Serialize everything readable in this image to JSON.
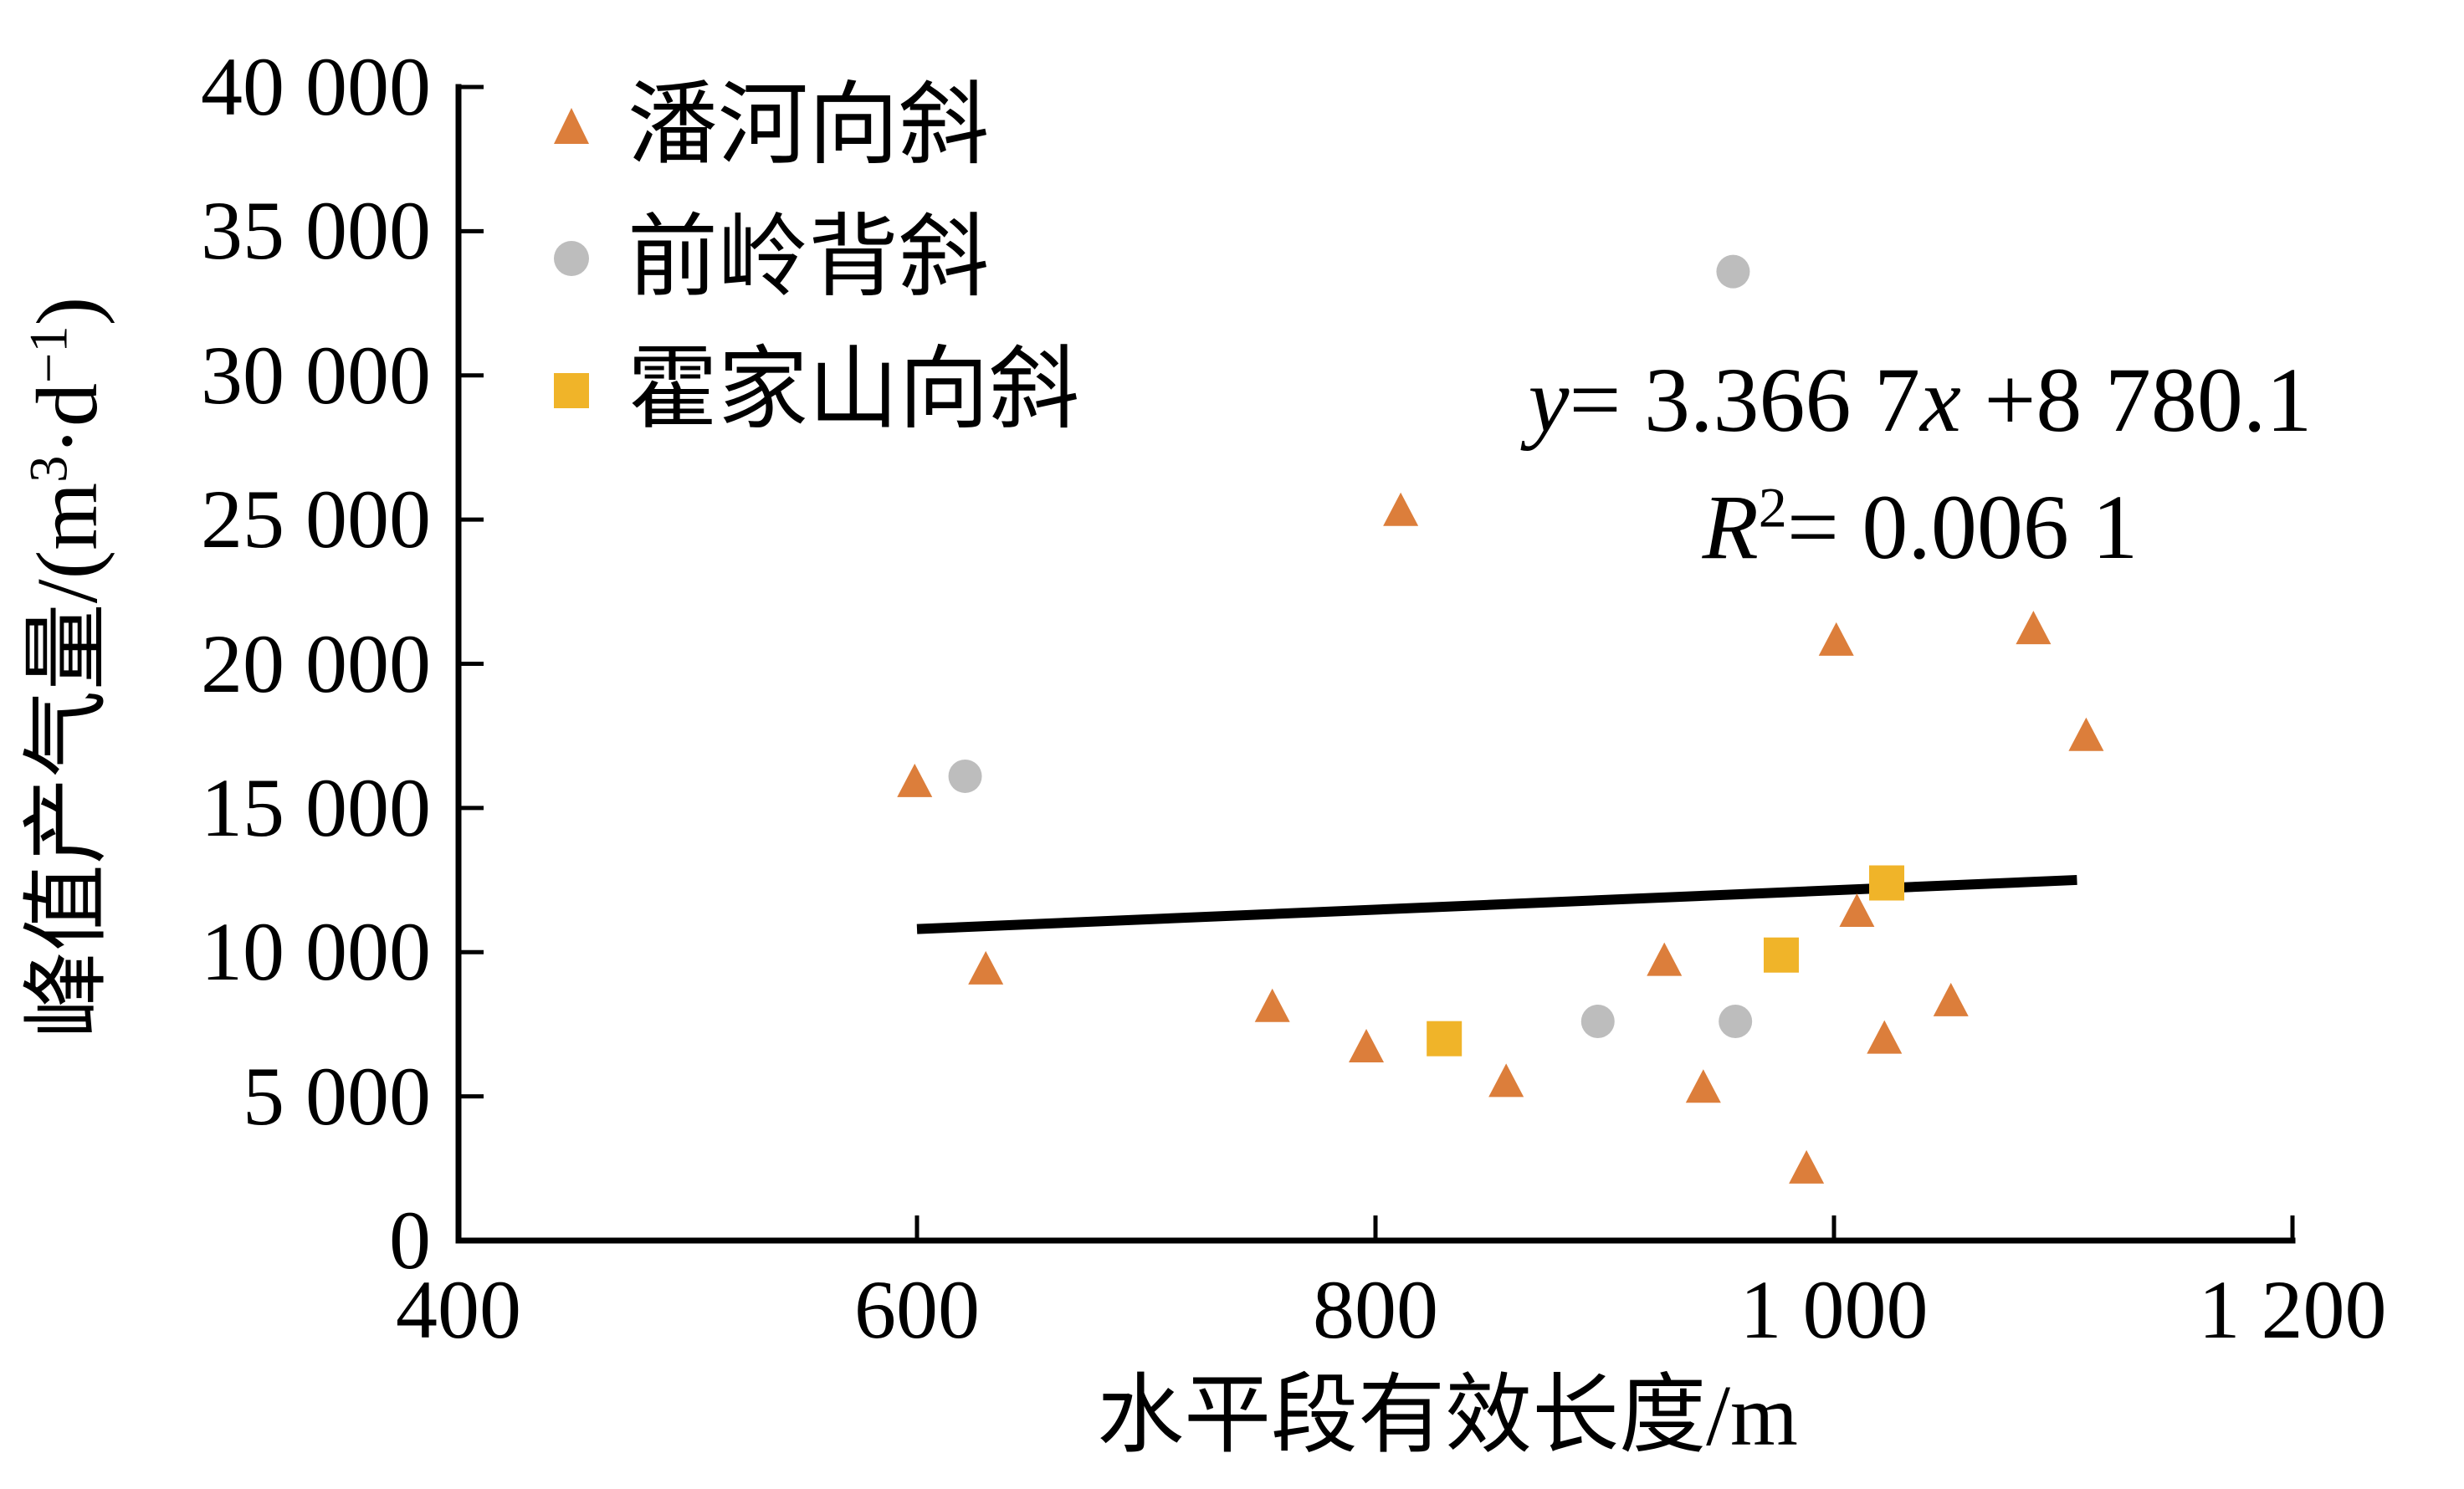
{
  "figure": {
    "background": "#FFFFFF"
  },
  "axes": {
    "x_title": "水平段有效长度/m",
    "y_title_prefix": "峰值产气量/(m",
    "y_title_sup1": "3",
    "y_title_mid": "·d",
    "y_title_sup2": "−1",
    "y_title_suffix": ")"
  },
  "annotation": {
    "line1_var1": "y",
    "line1_mid": "= 3.366 7",
    "line1_var2": "x",
    "line1_tail": " +8 780.1",
    "line2_var": "R",
    "line2_sup": "2",
    "line2_tail": "= 0.006 1"
  },
  "chart_data": {
    "type": "scatter",
    "title": "",
    "xlabel": "水平段有效长度/m",
    "ylabel": "峰值产气量/(m³·d⁻¹)",
    "x_range": [
      400,
      1200
    ],
    "y_range": [
      0,
      40000
    ],
    "grid": false,
    "legend_position": "top-left-inside",
    "x_ticks": [
      {
        "value": 400,
        "label": "400"
      },
      {
        "value": 600,
        "label": "600"
      },
      {
        "value": 800,
        "label": "800"
      },
      {
        "value": 1000,
        "label": "1 000"
      },
      {
        "value": 1200,
        "label": "1 200"
      }
    ],
    "y_ticks": [
      {
        "value": 0,
        "label": "0"
      },
      {
        "value": 5000,
        "label": "5 000"
      },
      {
        "value": 10000,
        "label": "10 000"
      },
      {
        "value": 15000,
        "label": "15 000"
      },
      {
        "value": 20000,
        "label": "20 000"
      },
      {
        "value": 25000,
        "label": "25 000"
      },
      {
        "value": 30000,
        "label": "30 000"
      },
      {
        "value": 35000,
        "label": "35 000"
      },
      {
        "value": 40000,
        "label": "40 000"
      }
    ],
    "series": [
      {
        "name": "潘河向斜",
        "marker": "triangle",
        "color": "#DC7E3B",
        "points": [
          [
            599,
            15900
          ],
          [
            630,
            9400
          ],
          [
            755,
            8100
          ],
          [
            796,
            6700
          ],
          [
            811,
            25300
          ],
          [
            857,
            5500
          ],
          [
            926,
            9700
          ],
          [
            943,
            5300
          ],
          [
            988,
            2500
          ],
          [
            1001,
            20800
          ],
          [
            1010,
            11400
          ],
          [
            1022,
            7000
          ],
          [
            1051,
            8300
          ],
          [
            1087,
            21200
          ],
          [
            1110,
            17500
          ]
        ]
      },
      {
        "name": "前岭背斜",
        "marker": "circle",
        "color": "#BDBDBD",
        "points": [
          [
            621,
            16100
          ],
          [
            897,
            7600
          ],
          [
            956,
            33600
          ],
          [
            957,
            7600
          ]
        ]
      },
      {
        "name": "霍家山向斜",
        "marker": "square",
        "color": "#F0B429",
        "points": [
          [
            830,
            7000
          ],
          [
            977,
            9900
          ],
          [
            1023,
            12400
          ]
        ]
      }
    ],
    "trendline": {
      "slope": 3.3667,
      "intercept": 8780.1,
      "r_squared": 0.0061,
      "x_start": 600,
      "x_end": 1106,
      "color": "#000000",
      "equation_text": "y= 3.366 7x +8 780.1",
      "r2_text": "R²= 0.006 1"
    }
  }
}
